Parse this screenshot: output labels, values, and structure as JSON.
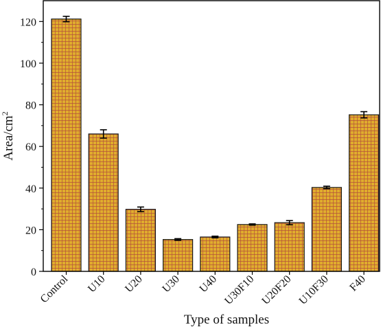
{
  "chart_data": {
    "type": "bar",
    "title": "",
    "xlabel": "Type of samples",
    "ylabel": "Area/cm",
    "ylabel_superscript": "2",
    "categories": [
      "Control",
      "U10",
      "U20",
      "U30",
      "U40",
      "U30F10",
      "U20F20",
      "U10F30",
      "F40"
    ],
    "values": [
      121.2,
      66.0,
      29.8,
      15.3,
      16.5,
      22.5,
      23.4,
      40.3,
      75.2
    ],
    "errors": [
      1.3,
      2.0,
      1.1,
      0.4,
      0.4,
      0.3,
      1.0,
      0.6,
      1.5
    ],
    "ylim": [
      0,
      130
    ],
    "yticks": [
      0,
      20,
      40,
      60,
      80,
      100,
      120
    ],
    "bar_color": "#e0ad2d",
    "pattern_color": "#b5513b",
    "grid": false,
    "legend": "none"
  }
}
